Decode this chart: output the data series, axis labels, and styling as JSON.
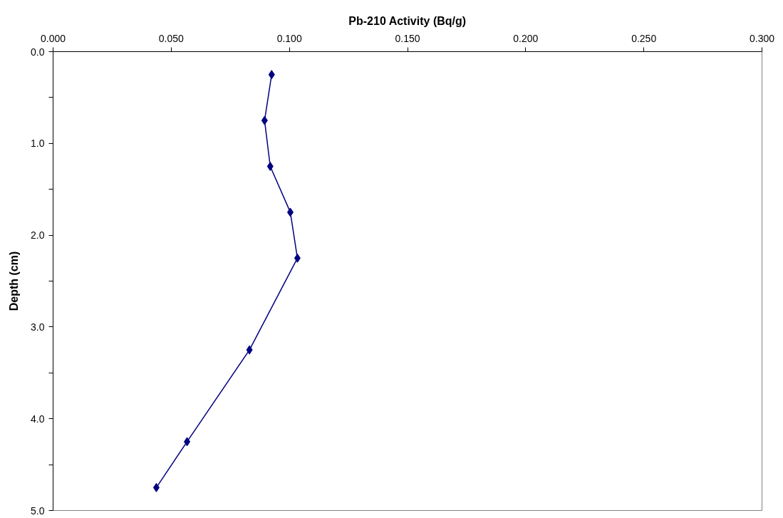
{
  "chart_data": {
    "type": "line",
    "xlabel": "Pb-210 Activity (Bq/g)",
    "ylabel": "Depth (cm)",
    "x": [
      0.0925,
      0.0895,
      0.0919,
      0.1004,
      0.1034,
      0.0831,
      0.0567,
      0.0437
    ],
    "series": [
      {
        "color": "#000080",
        "values": [
          0.25,
          0.75,
          1.25,
          1.75,
          2.25,
          3.25,
          4.25,
          4.75
        ]
      }
    ],
    "xlim": [
      0,
      0.3
    ],
    "ylim": [
      5,
      0
    ],
    "xticks": [
      {
        "value": 0,
        "label": "0.000"
      },
      {
        "value": 0.05,
        "label": "0.050"
      },
      {
        "value": 0.1,
        "label": "0.100"
      },
      {
        "value": 0.15,
        "label": "0.150"
      },
      {
        "value": 0.2,
        "label": "0.200"
      },
      {
        "value": 0.25,
        "label": "0.250"
      },
      {
        "value": 0.3,
        "label": "0.300"
      }
    ],
    "yticks": [
      {
        "value": 0,
        "label": "0.0"
      },
      {
        "value": 0.5,
        "label": null
      },
      {
        "value": 1,
        "label": "1.0"
      },
      {
        "value": 1.5,
        "label": null
      },
      {
        "value": 2,
        "label": "2.0"
      },
      {
        "value": 2.5,
        "label": null
      },
      {
        "value": 3,
        "label": "3.0"
      },
      {
        "value": 3.5,
        "label": null
      },
      {
        "value": 4,
        "label": "4.0"
      },
      {
        "value": 4.5,
        "label": null
      },
      {
        "value": 5,
        "label": "5.0"
      }
    ],
    "marker": "diamond",
    "line_style": "solid"
  }
}
